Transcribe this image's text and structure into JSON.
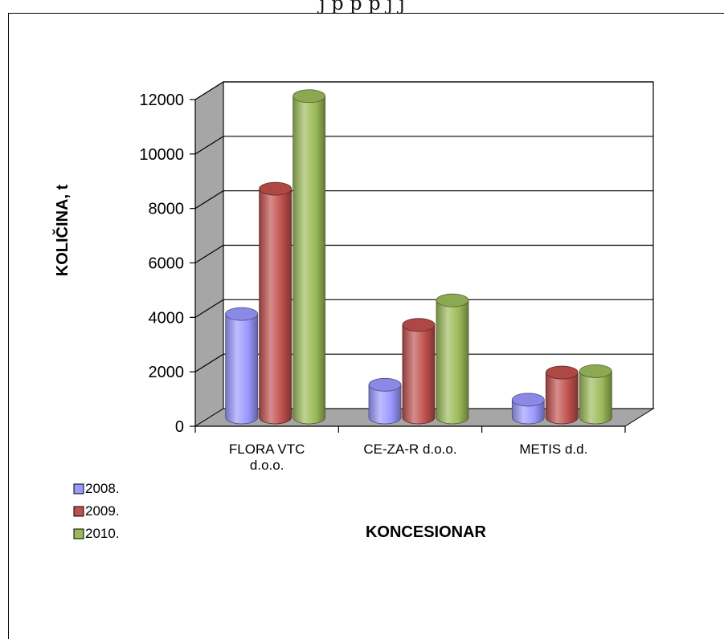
{
  "header": {
    "topline": "j       p   p  p j                                     j"
  },
  "chart_data": {
    "type": "bar",
    "categories": [
      "FLORA VTC\nd.o.o.",
      "CE-ZA-R d.o.o.",
      "METIS d.d."
    ],
    "series": [
      {
        "name": "2008.",
        "values": [
          3800,
          1200,
          650
        ],
        "color": "#9999ff"
      },
      {
        "name": "2009.",
        "values": [
          8400,
          3400,
          1650
        ],
        "color": "#c0504d"
      },
      {
        "name": "2010.",
        "values": [
          11800,
          4300,
          1700
        ],
        "color": "#9bbb59"
      }
    ],
    "ylabel": "KOLIČINA, t",
    "xlabel": "KONCESIONAR",
    "ylim": [
      0,
      12000
    ],
    "yticks": [
      "0",
      "2000",
      "4000",
      "6000",
      "8000",
      "10000",
      "12000"
    ],
    "grid": true,
    "legend": "bottom-left",
    "style": "3d-cylinder"
  }
}
